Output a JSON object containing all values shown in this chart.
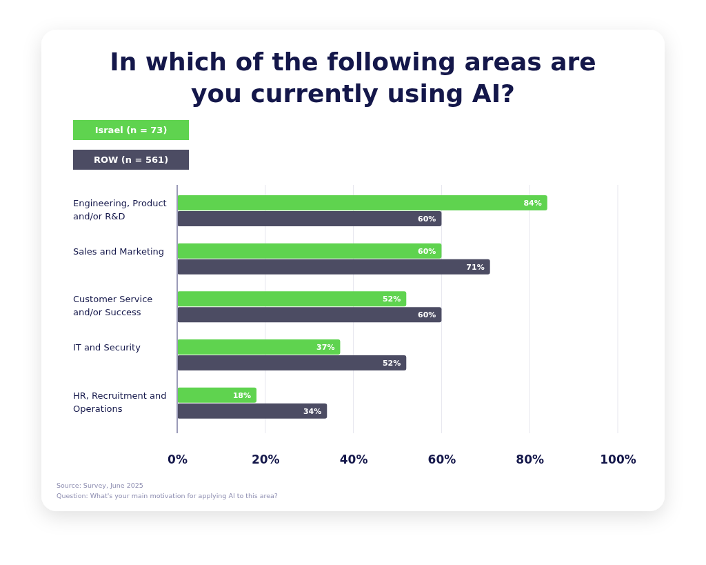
{
  "chart_data": {
    "type": "bar",
    "orientation": "horizontal",
    "title": "In which of the following areas are you currently using AI?",
    "categories": [
      "Engineering, Product and/or R&D",
      "Sales and Marketing",
      "Customer Service and/or Success",
      "IT and Security",
      "HR, Recruitment and Operations"
    ],
    "series": [
      {
        "name": "Israel (n = 73)",
        "color": "#5fd34f",
        "values": [
          84,
          60,
          52,
          37,
          18
        ],
        "value_labels": [
          "84%",
          "60%",
          "52%",
          "37%",
          "18%"
        ]
      },
      {
        "name": "ROW (n = 561)",
        "color": "#4c4c63",
        "values": [
          60,
          71,
          60,
          52,
          34
        ],
        "value_labels": [
          "60%",
          "71%",
          "60%",
          "52%",
          "34%"
        ]
      }
    ],
    "xlim": [
      0,
      100
    ],
    "xticks": [
      {
        "value": 0,
        "label": "0%"
      },
      {
        "value": 20,
        "label": "20%"
      },
      {
        "value": 40,
        "label": "40%"
      },
      {
        "value": 60,
        "label": "60%"
      },
      {
        "value": 80,
        "label": "80%"
      },
      {
        "value": 100,
        "label": "100%"
      }
    ],
    "grid": "x",
    "legend": "top left",
    "annotations": [
      "Source: Survey, June 2025",
      "Question: What's your main motivation for applying AI to this area?"
    ]
  }
}
